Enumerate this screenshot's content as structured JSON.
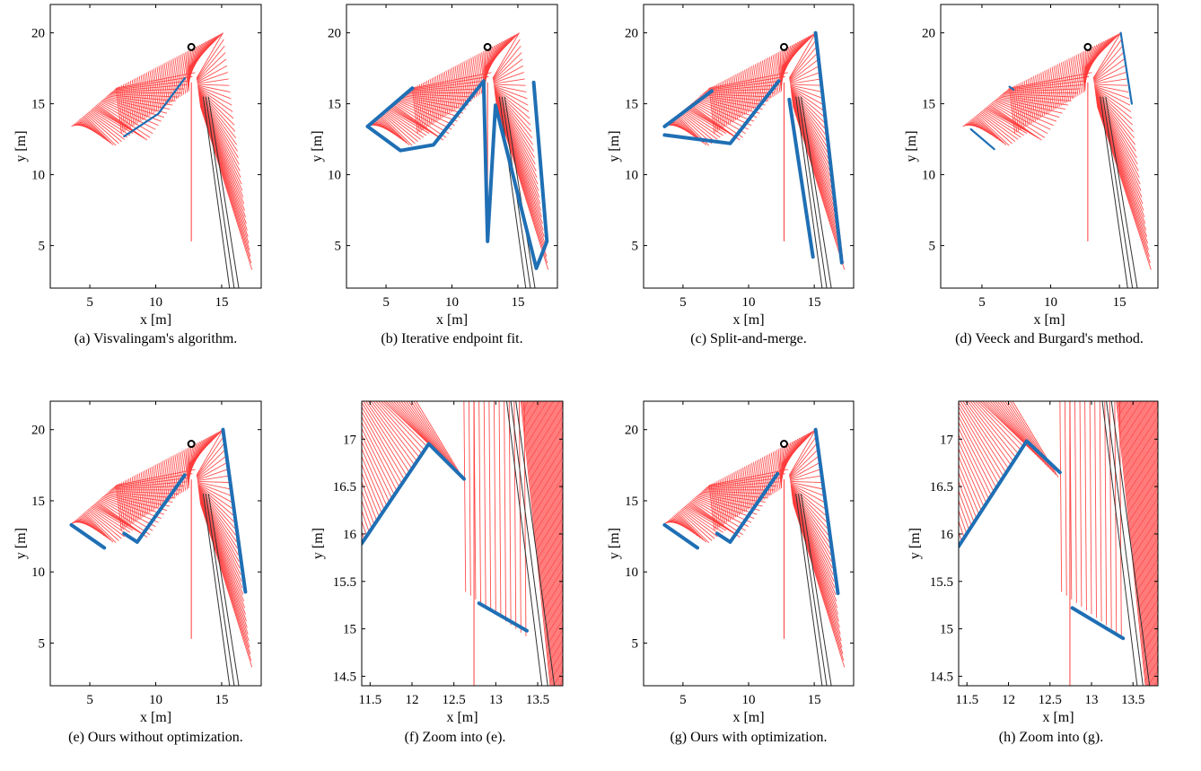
{
  "colors": {
    "ray": "#ff3b3b",
    "segment": "#1f6fb4",
    "black_ray": "#333333",
    "sensor": "#000000"
  },
  "chart_data": [
    {
      "id": "a",
      "type": "line",
      "kind": "full",
      "caption": "(a) Visvalingam's algorithm.",
      "xlabel": "x [m]",
      "ylabel": "y [m]",
      "xlim": [
        2,
        18
      ],
      "ylim": [
        2,
        22
      ],
      "xticks": [
        5,
        10,
        15
      ],
      "yticks": [
        5,
        10,
        15,
        20
      ],
      "sensor": [
        12.7,
        19.0
      ],
      "segments": [
        {
          "width": "thin",
          "points": [
            [
              7.6,
              12.7
            ],
            [
              10.2,
              14.3
            ],
            [
              12.2,
              16.8
            ]
          ]
        }
      ]
    },
    {
      "id": "b",
      "type": "line",
      "kind": "full",
      "caption": "(b) Iterative endpoint fit.",
      "xlabel": "x [m]",
      "ylabel": "y [m]",
      "xlim": [
        2,
        18
      ],
      "ylim": [
        2,
        22
      ],
      "xticks": [
        5,
        10,
        15
      ],
      "yticks": [
        5,
        10,
        15,
        20
      ],
      "sensor": [
        12.7,
        19.0
      ],
      "segments": [
        {
          "width": "thick",
          "points": [
            [
              7.0,
              16.1
            ],
            [
              3.6,
              13.4
            ],
            [
              6.1,
              11.7
            ],
            [
              8.6,
              12.1
            ],
            [
              12.4,
              16.6
            ],
            [
              12.7,
              5.3
            ],
            [
              13.3,
              14.9
            ],
            [
              16.4,
              3.4
            ],
            [
              17.2,
              5.3
            ],
            [
              16.2,
              16.5
            ]
          ]
        }
      ]
    },
    {
      "id": "c",
      "type": "line",
      "kind": "full",
      "caption": "(c) Split-and-merge.",
      "xlabel": "x [m]",
      "ylabel": "y [m]",
      "xlim": [
        2,
        18
      ],
      "ylim": [
        2,
        22
      ],
      "xticks": [
        5,
        10,
        15
      ],
      "yticks": [
        5,
        10,
        15,
        20
      ],
      "sensor": [
        12.7,
        19.0
      ],
      "segments": [
        {
          "width": "thick",
          "points": [
            [
              3.6,
              13.4
            ],
            [
              7.2,
              15.9
            ]
          ]
        },
        {
          "width": "thick",
          "points": [
            [
              3.6,
              12.8
            ],
            [
              8.6,
              12.2
            ],
            [
              12.3,
              16.6
            ]
          ]
        },
        {
          "width": "thick",
          "points": [
            [
              13.1,
              15.3
            ],
            [
              14.9,
              4.2
            ]
          ]
        },
        {
          "width": "thick",
          "points": [
            [
              15.1,
              20.0
            ],
            [
              17.1,
              3.8
            ]
          ]
        }
      ]
    },
    {
      "id": "d",
      "type": "line",
      "kind": "full",
      "caption": "(d) Veeck and Burgard's method.",
      "xlabel": "x [m]",
      "ylabel": "y [m]",
      "xlim": [
        2,
        17.8
      ],
      "ylim": [
        2,
        22
      ],
      "xticks": [
        5,
        10,
        15
      ],
      "yticks": [
        5,
        10,
        15,
        20
      ],
      "sensor": [
        12.7,
        19.0
      ],
      "segments": [
        {
          "width": "thin",
          "points": [
            [
              4.2,
              13.2
            ],
            [
              5.9,
              11.8
            ]
          ]
        },
        {
          "width": "thin",
          "points": [
            [
              15.1,
              20.0
            ],
            [
              15.9,
              15.0
            ]
          ]
        },
        {
          "width": "thin",
          "points": [
            [
              7.0,
              16.2
            ],
            [
              7.3,
              16.0
            ]
          ]
        }
      ]
    },
    {
      "id": "e",
      "type": "line",
      "kind": "full",
      "caption": "(e) Ours without optimization.",
      "xlabel": "x [m]",
      "ylabel": "y [m]",
      "xlim": [
        2,
        18
      ],
      "ylim": [
        2,
        22
      ],
      "xticks": [
        5,
        10,
        15
      ],
      "yticks": [
        5,
        10,
        15,
        20
      ],
      "sensor": [
        12.7,
        19.0
      ],
      "segments": [
        {
          "width": "thick",
          "points": [
            [
              3.6,
              13.3
            ],
            [
              6.1,
              11.7
            ]
          ]
        },
        {
          "width": "thick",
          "points": [
            [
              7.6,
              12.7
            ],
            [
              8.6,
              12.1
            ],
            [
              12.2,
              16.8
            ]
          ]
        },
        {
          "width": "thick",
          "points": [
            [
              15.1,
              20.0
            ],
            [
              16.8,
              8.6
            ]
          ]
        }
      ]
    },
    {
      "id": "f",
      "type": "line",
      "kind": "zoom",
      "caption": "(f) Zoom into (e).",
      "xlabel": "x [m]",
      "ylabel": "y [m]",
      "xlim": [
        11.4,
        13.8
      ],
      "ylim": [
        14.4,
        17.4
      ],
      "xticks": [
        11.5,
        12,
        12.5,
        13,
        13.5
      ],
      "yticks": [
        14.5,
        15,
        15.5,
        16,
        16.5,
        17
      ],
      "xtick_labels": [
        "11.5",
        "12",
        "12.5",
        "13",
        "13.5"
      ],
      "ytick_labels": [
        "14.5",
        "15",
        "15.5",
        "16",
        "16.5",
        "17"
      ],
      "segments": [
        {
          "width": "thick",
          "points": [
            [
              11.4,
              15.9
            ],
            [
              12.2,
              16.95
            ],
            [
              12.62,
              16.58
            ]
          ]
        },
        {
          "width": "thick",
          "points": [
            [
              12.8,
              15.27
            ],
            [
              13.37,
              14.98
            ]
          ]
        }
      ]
    },
    {
      "id": "g",
      "type": "line",
      "kind": "full",
      "caption": "(g) Ours with optimization.",
      "xlabel": "x [m]",
      "ylabel": "y [m]",
      "xlim": [
        2,
        18
      ],
      "ylim": [
        2,
        22
      ],
      "xticks": [
        5,
        10,
        15
      ],
      "yticks": [
        5,
        10,
        15,
        20
      ],
      "sensor": [
        12.7,
        19.0
      ],
      "segments": [
        {
          "width": "thick",
          "points": [
            [
              3.6,
              13.3
            ],
            [
              6.1,
              11.7
            ]
          ]
        },
        {
          "width": "thick",
          "points": [
            [
              7.6,
              12.7
            ],
            [
              8.6,
              12.1
            ],
            [
              12.2,
              16.9
            ]
          ]
        },
        {
          "width": "thick",
          "points": [
            [
              15.1,
              20.0
            ],
            [
              16.8,
              8.5
            ]
          ]
        }
      ]
    },
    {
      "id": "h",
      "type": "line",
      "kind": "zoom",
      "caption": "(h) Zoom into (g).",
      "xlabel": "x [m]",
      "ylabel": "y [m]",
      "xlim": [
        11.4,
        13.8
      ],
      "ylim": [
        14.4,
        17.4
      ],
      "xticks": [
        11.5,
        12,
        12.5,
        13,
        13.5
      ],
      "yticks": [
        14.5,
        15,
        15.5,
        16,
        16.5,
        17
      ],
      "xtick_labels": [
        "11.5",
        "12",
        "12.5",
        "13",
        "13.5"
      ],
      "ytick_labels": [
        "14.5",
        "15",
        "15.5",
        "16",
        "16.5",
        "17"
      ],
      "segments": [
        {
          "width": "thick",
          "points": [
            [
              11.4,
              15.87
            ],
            [
              12.22,
              16.98
            ],
            [
              12.62,
              16.65
            ]
          ]
        },
        {
          "width": "thick",
          "points": [
            [
              12.77,
              15.22
            ],
            [
              13.38,
              14.9
            ]
          ]
        }
      ]
    }
  ]
}
